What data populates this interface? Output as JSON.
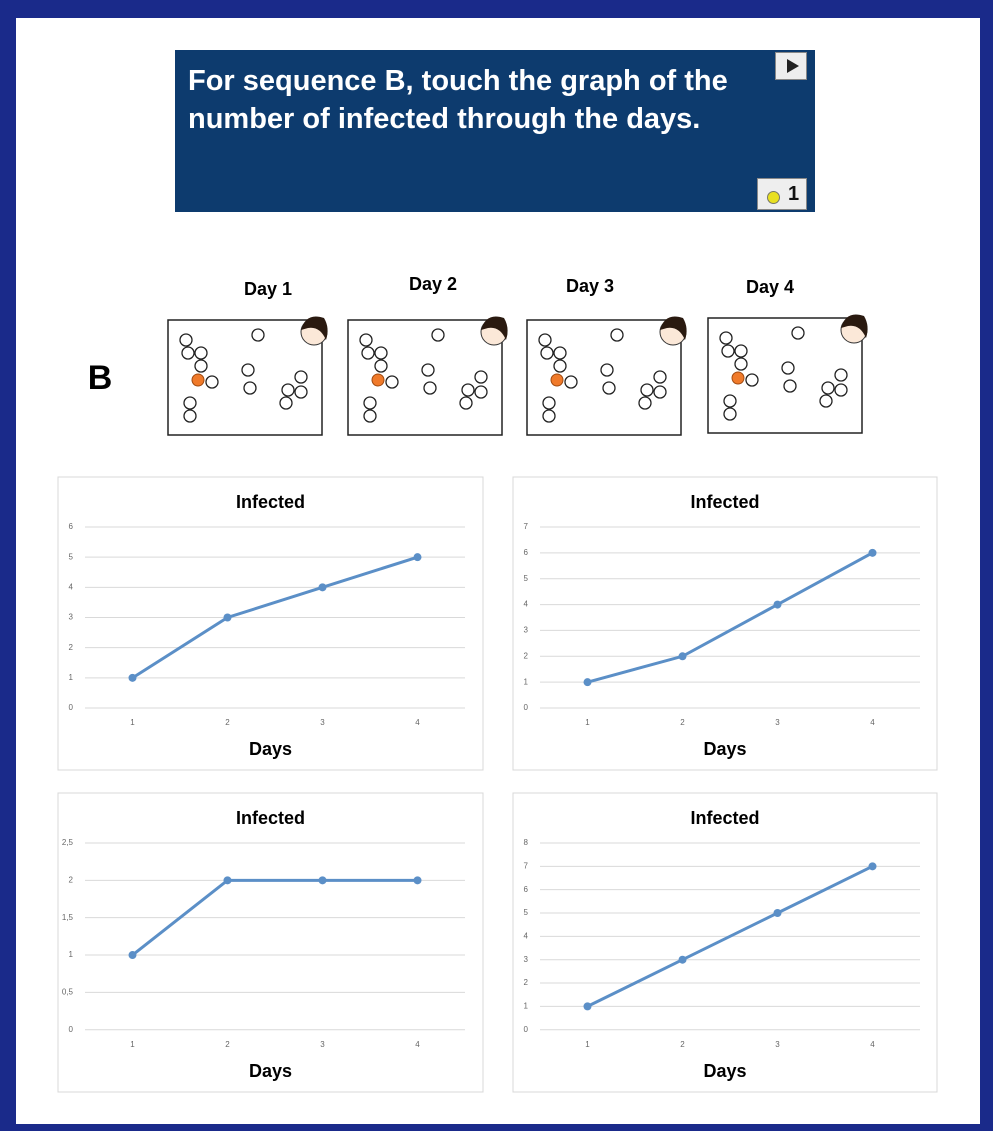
{
  "prompt": "For sequence B, touch the graph of the number of infected through the days.",
  "counter": "1",
  "sequence_label": "B",
  "days": [
    "Day 1",
    "Day 2",
    "Day 3",
    "Day 4"
  ],
  "chart_data": [
    {
      "type": "line",
      "title": "Infected",
      "x_label": "Days",
      "categories": [
        "1",
        "2",
        "3",
        "4"
      ],
      "values": [
        1,
        3,
        4,
        5
      ],
      "color": "#5b8fc7",
      "ylim": [
        0,
        6
      ],
      "yticks": [
        0,
        1,
        2,
        3,
        4,
        5,
        6
      ],
      "grid": true
    },
    {
      "type": "line",
      "title": "Infected",
      "x_label": "Days",
      "categories": [
        "1",
        "2",
        "3",
        "4"
      ],
      "values": [
        1,
        2,
        4,
        6
      ],
      "color": "#5b8fc7",
      "ylim": [
        0,
        7
      ],
      "yticks": [
        0,
        1,
        2,
        3,
        4,
        5,
        6,
        7
      ],
      "grid": true
    },
    {
      "type": "line",
      "title": "Infected",
      "x_label": "Days",
      "categories": [
        "1",
        "2",
        "3",
        "4"
      ],
      "values": [
        1,
        2,
        2,
        2
      ],
      "color": "#5b8fc7",
      "ylim": [
        0,
        2.5
      ],
      "yticks": [
        0,
        {
          "value": 0.5,
          "label": "0,5"
        },
        1,
        {
          "value": 1.5,
          "label": "1,5"
        },
        2,
        {
          "value": 2.5,
          "label": "2,5"
        }
      ],
      "grid": true
    },
    {
      "type": "line",
      "title": "Infected",
      "x_label": "Days",
      "categories": [
        "1",
        "2",
        "3",
        "4"
      ],
      "values": [
        1,
        3,
        5,
        7
      ],
      "color": "#5b8fc7",
      "ylim": [
        0,
        8
      ],
      "yticks": [
        0,
        1,
        2,
        3,
        4,
        5,
        6,
        7,
        8
      ],
      "grid": true
    }
  ]
}
